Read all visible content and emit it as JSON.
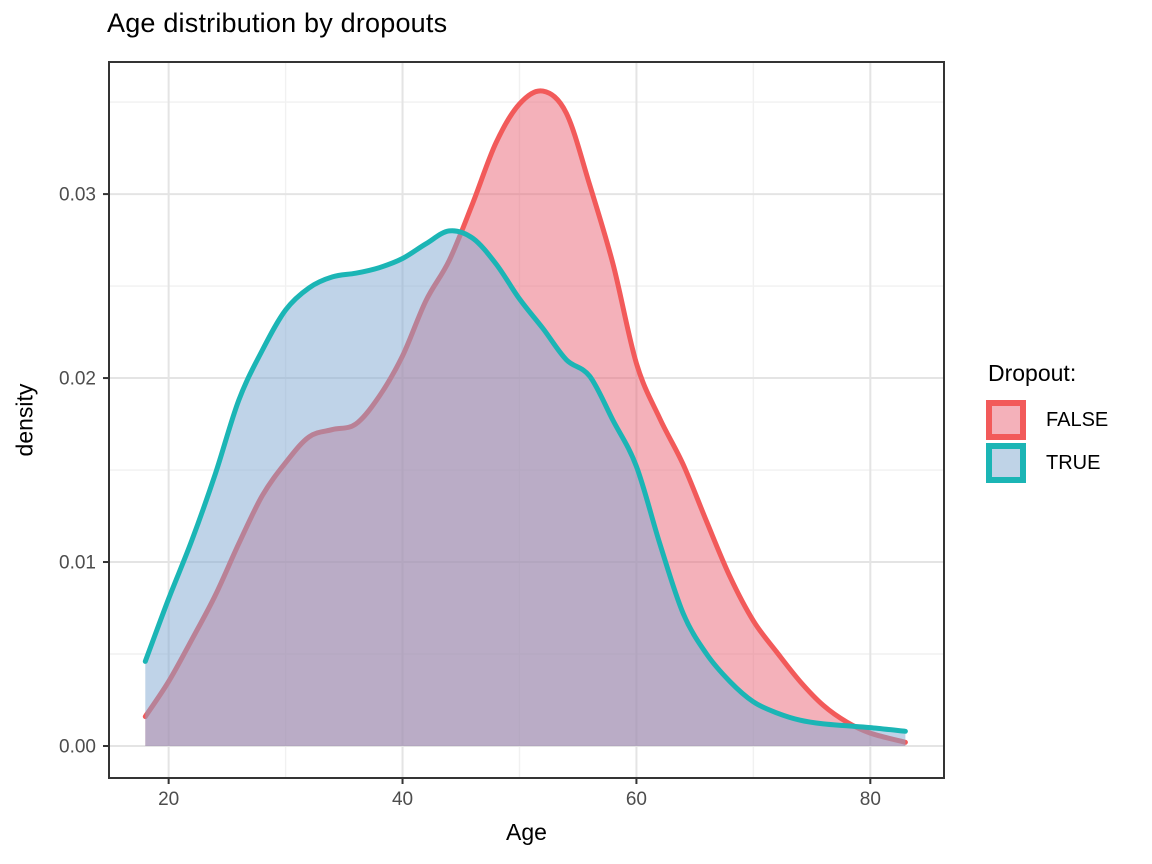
{
  "title": "Age distribution by dropouts",
  "legend": {
    "title": "Dropout:",
    "items": [
      {
        "label": "FALSE",
        "line_color": "#F25A5A",
        "fill_color": "#F4B1BA"
      },
      {
        "label": "TRUE",
        "line_color": "#1BB5B5",
        "fill_color": "#BFD3E7"
      }
    ]
  },
  "chart_data": {
    "type": "area",
    "subtype": "density",
    "title": "Age distribution by dropouts",
    "xlabel": "Age",
    "ylabel": "density",
    "x": [
      18,
      20,
      22,
      24,
      26,
      28,
      30,
      32,
      34,
      36,
      38,
      40,
      42,
      44,
      46,
      48,
      50,
      52,
      54,
      56,
      58,
      60,
      62,
      64,
      66,
      68,
      70,
      72,
      74,
      76,
      78,
      80,
      83
    ],
    "series": [
      {
        "name": "FALSE",
        "line_color": "#F25A5A",
        "fill_color": "rgba(233,99,117,0.5)",
        "values": [
          0.0016,
          0.0035,
          0.0058,
          0.0082,
          0.011,
          0.0136,
          0.0154,
          0.0168,
          0.0172,
          0.0175,
          0.019,
          0.0212,
          0.0242,
          0.0264,
          0.0295,
          0.0328,
          0.0349,
          0.0356,
          0.0344,
          0.0305,
          0.0262,
          0.0208,
          0.0178,
          0.0153,
          0.0122,
          0.0092,
          0.0068,
          0.0051,
          0.0035,
          0.0022,
          0.0013,
          0.0007,
          0.0002
        ]
      },
      {
        "name": "TRUE",
        "line_color": "#1BB5B5",
        "fill_color": "rgba(127,167,209,0.5)",
        "values": [
          0.0046,
          0.008,
          0.0112,
          0.0148,
          0.0188,
          0.0215,
          0.0237,
          0.0249,
          0.0255,
          0.0257,
          0.026,
          0.0265,
          0.0273,
          0.028,
          0.0276,
          0.0262,
          0.0243,
          0.0227,
          0.021,
          0.0201,
          0.0177,
          0.0152,
          0.011,
          0.0072,
          0.005,
          0.0035,
          0.0024,
          0.0018,
          0.0014,
          0.0012,
          0.0011,
          0.001,
          0.0008
        ]
      }
    ],
    "x_domain": [
      14.9,
      86.3
    ],
    "y_domain": [
      -0.00174,
      0.03718
    ],
    "x_ticks": [
      20,
      40,
      60,
      80
    ],
    "x_tick_labels": [
      "20",
      "40",
      "60",
      "80"
    ],
    "x_minor": [
      30,
      50,
      70
    ],
    "y_ticks": [
      0,
      0.01,
      0.02,
      0.03
    ],
    "y_tick_labels": [
      "0.00",
      "0.01",
      "0.02",
      "0.03"
    ],
    "y_minor": [
      0.005,
      0.015,
      0.025,
      0.035
    ],
    "grid": true,
    "legend_position": "right",
    "colors": {
      "grid_major": "#E4E4E4",
      "grid_minor": "#F1F1F1",
      "panel_border": "#343434",
      "tick_mark": "#343434",
      "tick_label": "#4D4D4D"
    }
  }
}
